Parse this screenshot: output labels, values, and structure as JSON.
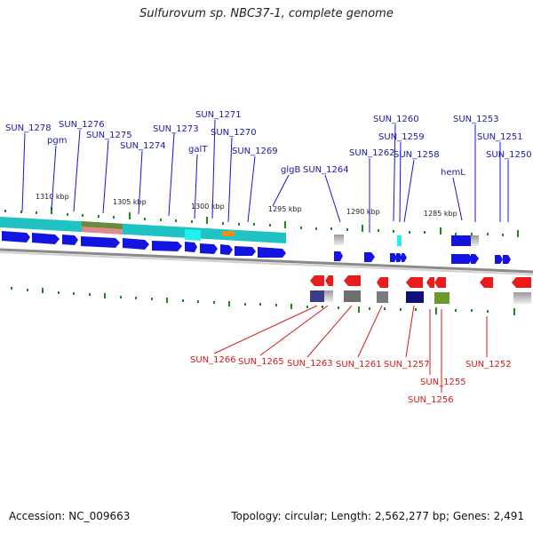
{
  "title": "Sulfurovum sp. NBC37-1, complete genome",
  "footer": {
    "accession": "Accession: NC_009663",
    "summary": "Topology: circular; Length: 2,562,277 bp; Genes: 2,491"
  },
  "scale_labels": [
    "1310 kbp",
    "1305 kbp",
    "1300 kbp",
    "1295 kbp",
    "1290 kbp",
    "1285 kbp"
  ],
  "forward_genes": [
    "SUN_1278",
    "pgm",
    "SUN_1276",
    "SUN_1275",
    "SUN_1274",
    "SUN_1273",
    "galT",
    "SUN_1271",
    "SUN_1270",
    "SUN_1269",
    "glgB",
    "SUN_1264",
    "SUN_1262",
    "SUN_1260",
    "SUN_1259",
    "SUN_1258",
    "hemL",
    "SUN_1253",
    "SUN_1251",
    "SUN_1250"
  ],
  "reverse_genes": [
    "SUN_1266",
    "SUN_1265",
    "SUN_1263",
    "SUN_1261",
    "SUN_1257",
    "SUN_1255",
    "SUN_1256",
    "SUN_1252"
  ],
  "colors": {
    "forward_label": "#1a1aa6",
    "reverse_label": "#d21b1b",
    "forward_gene": "#1414e0",
    "reverse_gene": "#e81c1c",
    "tick": "#1e8a1e",
    "teal_band": "#1fc3c3",
    "backbone": "#8a8a8a"
  }
}
